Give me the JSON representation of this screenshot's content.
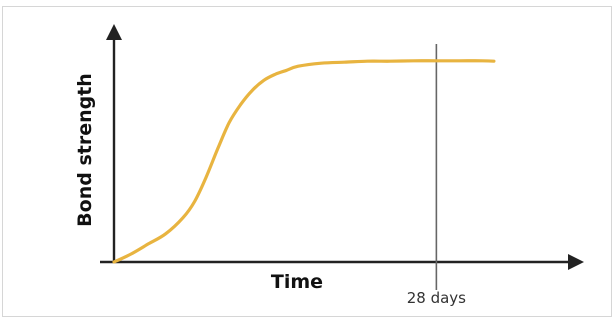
{
  "chart_data": {
    "type": "line",
    "title": "",
    "xlabel": "Time",
    "ylabel": "Bond strength",
    "grid": false,
    "legend": "none",
    "x_ticks": "none",
    "y_ticks": "none",
    "marker": {
      "label": "28 days",
      "x": 28
    },
    "xlim": [
      0,
      37
    ],
    "ylim": [
      0,
      1.1
    ],
    "series": [
      {
        "color": "#e8b440",
        "x": [
          0,
          1.5,
          3,
          4.5,
          6,
          7,
          8,
          9,
          10,
          11,
          12,
          13,
          14,
          15,
          16,
          18,
          20,
          22,
          24,
          26,
          28,
          30,
          32,
          33
        ],
        "y": [
          0.0,
          0.04,
          0.09,
          0.14,
          0.22,
          0.3,
          0.42,
          0.56,
          0.69,
          0.78,
          0.85,
          0.9,
          0.93,
          0.95,
          0.97,
          0.985,
          0.99,
          0.995,
          0.995,
          0.997,
          0.997,
          0.997,
          0.997,
          0.995
        ]
      }
    ]
  }
}
